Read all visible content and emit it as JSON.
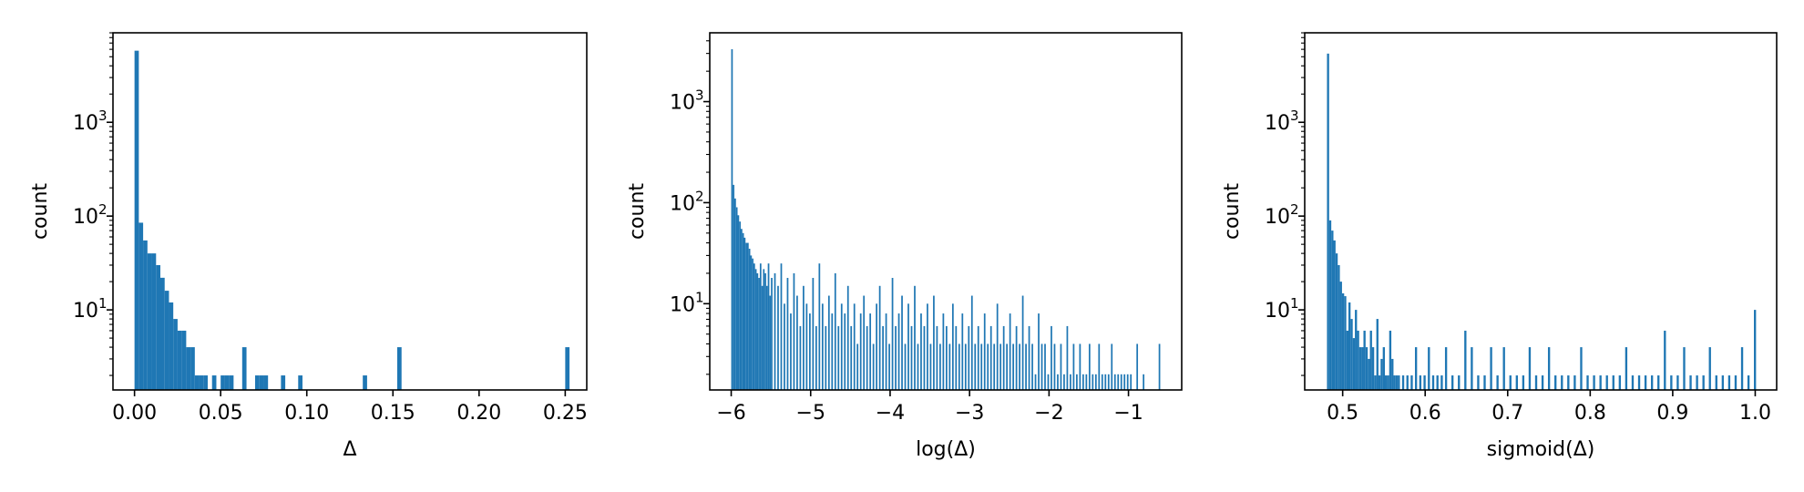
{
  "chart_data": [
    {
      "type": "bar",
      "title": "",
      "xlabel": "Δ",
      "ylabel": "count",
      "yscale": "log",
      "xlim": [
        -0.0125,
        0.2625
      ],
      "ylim": [
        1.4,
        9000
      ],
      "xticks": [
        {
          "value": 0.0,
          "label": "0.00"
        },
        {
          "value": 0.05,
          "label": "0.05"
        },
        {
          "value": 0.1,
          "label": "0.10"
        },
        {
          "value": 0.15,
          "label": "0.15"
        },
        {
          "value": 0.2,
          "label": "0.20"
        },
        {
          "value": 0.25,
          "label": "0.25"
        }
      ],
      "yticks": [
        {
          "value": 10,
          "base": "10",
          "exp": "1"
        },
        {
          "value": 100,
          "base": "10",
          "exp": "2"
        },
        {
          "value": 1000,
          "base": "10",
          "exp": "3"
        }
      ],
      "bin_width": 0.0025,
      "x": [
        0.0,
        0.0025,
        0.005,
        0.0075,
        0.01,
        0.0125,
        0.015,
        0.0175,
        0.02,
        0.0225,
        0.025,
        0.0275,
        0.03,
        0.0325,
        0.035,
        0.0375,
        0.04,
        0.045,
        0.05,
        0.0525,
        0.055,
        0.0625,
        0.07,
        0.0725,
        0.075,
        0.085,
        0.095,
        0.1325,
        0.1525,
        0.25
      ],
      "values": [
        5800,
        85,
        55,
        40,
        40,
        30,
        22,
        16,
        12,
        8,
        6,
        6,
        4,
        4,
        2,
        2,
        2,
        2,
        2,
        2,
        2,
        4,
        2,
        2,
        2,
        2,
        2,
        2,
        4,
        4
      ],
      "color": "#1f77b4"
    },
    {
      "type": "bar",
      "title": "",
      "xlabel": "log(Δ)",
      "ylabel": "count",
      "yscale": "log",
      "xlim": [
        -6.27,
        -0.33
      ],
      "ylim": [
        1.4,
        4800
      ],
      "xticks": [
        {
          "value": -6,
          "label": "−6"
        },
        {
          "value": -5,
          "label": "−5"
        },
        {
          "value": -4,
          "label": "−4"
        },
        {
          "value": -3,
          "label": "−3"
        },
        {
          "value": -2,
          "label": "−2"
        },
        {
          "value": -1,
          "label": "−1"
        }
      ],
      "yticks": [
        {
          "value": 10,
          "base": "10",
          "exp": "1"
        },
        {
          "value": 100,
          "base": "10",
          "exp": "2"
        },
        {
          "value": 1000,
          "base": "10",
          "exp": "3"
        }
      ],
      "bin_width": 0.02,
      "x": [
        -6.0,
        -5.98,
        -5.96,
        -5.94,
        -5.92,
        -5.9,
        -5.88,
        -5.86,
        -5.84,
        -5.82,
        -5.8,
        -5.78,
        -5.76,
        -5.74,
        -5.72,
        -5.7,
        -5.68,
        -5.66,
        -5.64,
        -5.62,
        -5.6,
        -5.58,
        -5.56,
        -5.54,
        -5.52,
        -5.5,
        -5.46,
        -5.42,
        -5.38,
        -5.34,
        -5.3,
        -5.26,
        -5.22,
        -5.18,
        -5.14,
        -5.1,
        -5.06,
        -5.02,
        -4.98,
        -4.94,
        -4.9,
        -4.86,
        -4.82,
        -4.78,
        -4.74,
        -4.7,
        -4.66,
        -4.62,
        -4.58,
        -4.54,
        -4.5,
        -4.46,
        -4.42,
        -4.38,
        -4.34,
        -4.3,
        -4.26,
        -4.22,
        -4.18,
        -4.14,
        -4.1,
        -4.06,
        -4.02,
        -3.98,
        -3.94,
        -3.9,
        -3.86,
        -3.82,
        -3.78,
        -3.74,
        -3.7,
        -3.66,
        -3.62,
        -3.58,
        -3.54,
        -3.5,
        -3.46,
        -3.42,
        -3.38,
        -3.34,
        -3.3,
        -3.26,
        -3.22,
        -3.18,
        -3.14,
        -3.1,
        -3.06,
        -3.02,
        -2.98,
        -2.94,
        -2.9,
        -2.86,
        -2.82,
        -2.78,
        -2.74,
        -2.7,
        -2.66,
        -2.62,
        -2.58,
        -2.54,
        -2.5,
        -2.46,
        -2.42,
        -2.38,
        -2.34,
        -2.3,
        -2.26,
        -2.22,
        -2.18,
        -2.14,
        -2.1,
        -2.06,
        -2.02,
        -1.98,
        -1.94,
        -1.9,
        -1.86,
        -1.82,
        -1.78,
        -1.74,
        -1.7,
        -1.66,
        -1.62,
        -1.58,
        -1.54,
        -1.5,
        -1.46,
        -1.42,
        -1.38,
        -1.34,
        -1.3,
        -1.26,
        -1.22,
        -1.18,
        -1.14,
        -1.1,
        -1.06,
        -1.02,
        -0.98,
        -0.9,
        -0.82,
        -0.62
      ],
      "values": [
        3300,
        150,
        110,
        90,
        75,
        65,
        55,
        50,
        45,
        40,
        40,
        35,
        30,
        28,
        25,
        22,
        20,
        18,
        25,
        15,
        22,
        20,
        15,
        25,
        12,
        18,
        20,
        15,
        25,
        10,
        18,
        8,
        20,
        12,
        6,
        15,
        10,
        8,
        18,
        6,
        25,
        10,
        6,
        12,
        8,
        20,
        6,
        10,
        8,
        15,
        6,
        10,
        4,
        8,
        12,
        6,
        8,
        4,
        10,
        15,
        6,
        8,
        4,
        18,
        6,
        8,
        12,
        4,
        10,
        6,
        15,
        4,
        8,
        6,
        10,
        4,
        12,
        6,
        4,
        8,
        6,
        4,
        10,
        6,
        4,
        8,
        4,
        6,
        12,
        4,
        6,
        4,
        8,
        4,
        6,
        4,
        10,
        4,
        6,
        4,
        8,
        4,
        6,
        4,
        12,
        4,
        6,
        4,
        2,
        8,
        4,
        4,
        2,
        6,
        4,
        2,
        4,
        2,
        6,
        2,
        4,
        2,
        4,
        2,
        2,
        4,
        2,
        2,
        4,
        2,
        2,
        2,
        4,
        2,
        2,
        2,
        2,
        2,
        2,
        4,
        2,
        4
      ],
      "color": "#1f77b4"
    },
    {
      "type": "bar",
      "title": "",
      "xlabel": "sigmoid(Δ)",
      "ylabel": "count",
      "yscale": "log",
      "xlim": [
        0.454,
        1.026
      ],
      "ylim": [
        1.4,
        9000
      ],
      "xticks": [
        {
          "value": 0.5,
          "label": "0.5"
        },
        {
          "value": 0.6,
          "label": "0.6"
        },
        {
          "value": 0.7,
          "label": "0.7"
        },
        {
          "value": 0.8,
          "label": "0.8"
        },
        {
          "value": 0.9,
          "label": "0.9"
        },
        {
          "value": 1.0,
          "label": "1.0"
        }
      ],
      "yticks": [
        {
          "value": 10,
          "base": "10",
          "exp": "1"
        },
        {
          "value": 100,
          "base": "10",
          "exp": "2"
        },
        {
          "value": 1000,
          "base": "10",
          "exp": "3"
        }
      ],
      "bin_width": 0.0026,
      "x": [
        0.481,
        0.4836,
        0.4862,
        0.4888,
        0.4914,
        0.494,
        0.4966,
        0.4992,
        0.5018,
        0.5044,
        0.507,
        0.5096,
        0.5122,
        0.5148,
        0.5174,
        0.52,
        0.5226,
        0.5252,
        0.5278,
        0.5304,
        0.533,
        0.5356,
        0.5382,
        0.5408,
        0.5434,
        0.546,
        0.5486,
        0.5512,
        0.5538,
        0.5564,
        0.559,
        0.5616,
        0.5642,
        0.5668,
        0.572,
        0.5772,
        0.5824,
        0.5876,
        0.5928,
        0.598,
        0.6032,
        0.6084,
        0.6136,
        0.6188,
        0.624,
        0.6318,
        0.6396,
        0.6474,
        0.6552,
        0.663,
        0.6708,
        0.6786,
        0.6864,
        0.6942,
        0.702,
        0.7098,
        0.7176,
        0.7254,
        0.7332,
        0.741,
        0.7488,
        0.7566,
        0.7644,
        0.7722,
        0.78,
        0.7878,
        0.7956,
        0.8034,
        0.8112,
        0.819,
        0.8268,
        0.8346,
        0.8424,
        0.8502,
        0.858,
        0.8658,
        0.8736,
        0.8814,
        0.8892,
        0.897,
        0.9048,
        0.9126,
        0.9204,
        0.9282,
        0.936,
        0.9438,
        0.9516,
        0.9594,
        0.9672,
        0.975,
        0.9828,
        0.9906,
        0.9984
      ],
      "values": [
        5400,
        90,
        70,
        55,
        40,
        30,
        20,
        15,
        14,
        6,
        12,
        8,
        5,
        10,
        6,
        4,
        4,
        6,
        4,
        3,
        6,
        4,
        2,
        8,
        2,
        3,
        4,
        2,
        2,
        6,
        3,
        2,
        2,
        2,
        2,
        2,
        2,
        4,
        2,
        2,
        4,
        2,
        2,
        2,
        4,
        2,
        2,
        6,
        4,
        2,
        2,
        4,
        2,
        4,
        2,
        2,
        2,
        4,
        2,
        2,
        4,
        2,
        2,
        2,
        2,
        4,
        2,
        2,
        2,
        2,
        2,
        2,
        4,
        2,
        2,
        2,
        2,
        2,
        6,
        2,
        2,
        4,
        2,
        2,
        2,
        4,
        2,
        2,
        2,
        2,
        4,
        2,
        10
      ],
      "color": "#1f77b4"
    }
  ]
}
